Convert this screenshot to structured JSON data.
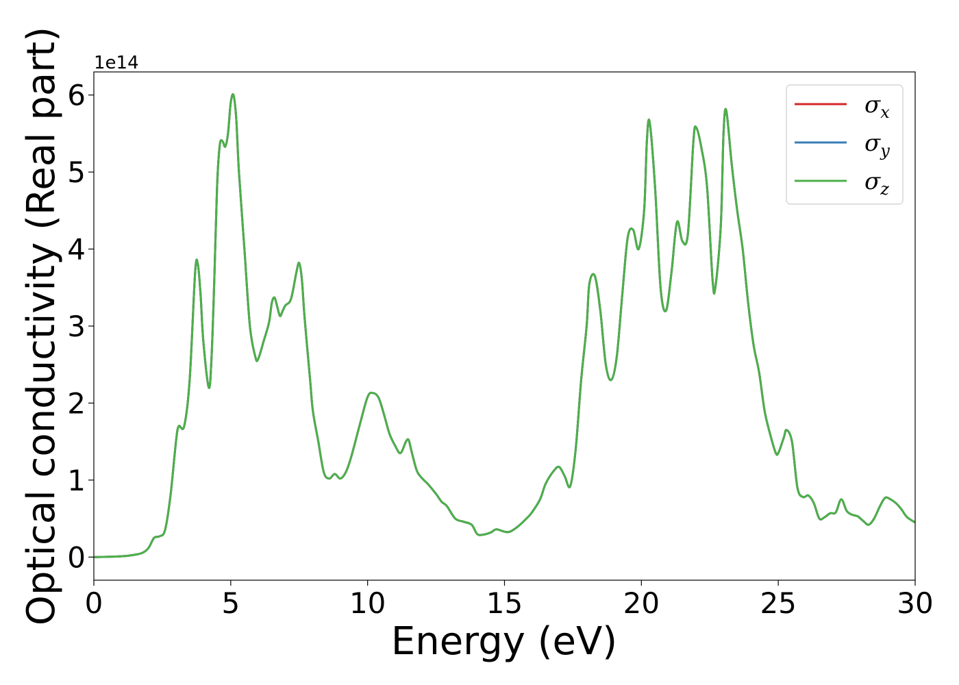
{
  "chart_data": {
    "type": "line",
    "xlabel": "Energy (eV)",
    "ylabel": "Optical conductivity (Real part)",
    "y_offset_label": "1e14",
    "xlim": [
      0,
      30
    ],
    "ylim": [
      -0.3,
      6.3
    ],
    "x_ticks": [
      0,
      5,
      10,
      15,
      20,
      25,
      30
    ],
    "x_tick_labels": [
      "0",
      "5",
      "10",
      "15",
      "20",
      "25",
      "30"
    ],
    "y_ticks": [
      0,
      1,
      2,
      3,
      4,
      5,
      6
    ],
    "y_tick_labels": [
      "0",
      "1",
      "2",
      "3",
      "4",
      "5",
      "6"
    ],
    "grid": false,
    "legend_position": "top-right",
    "series": [
      {
        "name": "σx",
        "symbol": "σ",
        "subscript": "x",
        "color": "#d62728"
      },
      {
        "name": "σy",
        "symbol": "σ",
        "subscript": "y",
        "color": "#377eb8"
      },
      {
        "name": "σz",
        "symbol": "σ",
        "subscript": "z",
        "color": "#4daf4a"
      }
    ],
    "x": [
      0,
      1.0,
      1.5,
      1.8,
      2.0,
      2.2,
      2.4,
      2.6,
      2.8,
      3.0,
      3.1,
      3.3,
      3.5,
      3.7,
      3.8,
      3.9,
      4.0,
      4.2,
      4.3,
      4.4,
      4.5,
      4.6,
      4.7,
      4.8,
      4.9,
      5.0,
      5.1,
      5.2,
      5.3,
      5.5,
      5.7,
      5.9,
      6.0,
      6.2,
      6.4,
      6.5,
      6.6,
      6.7,
      6.8,
      6.9,
      7.0,
      7.2,
      7.4,
      7.5,
      7.6,
      7.7,
      7.9,
      8.0,
      8.2,
      8.4,
      8.6,
      8.8,
      9.0,
      9.2,
      9.4,
      9.7,
      10.0,
      10.2,
      10.4,
      10.6,
      10.8,
      11.0,
      11.2,
      11.4,
      11.5,
      11.6,
      11.8,
      12.0,
      12.2,
      12.5,
      12.7,
      12.9,
      13.2,
      13.5,
      13.8,
      14.0,
      14.2,
      14.5,
      14.7,
      15.0,
      15.2,
      15.5,
      15.8,
      16.0,
      16.3,
      16.5,
      16.8,
      17.0,
      17.2,
      17.4,
      17.6,
      17.8,
      18.0,
      18.1,
      18.3,
      18.5,
      18.7,
      18.9,
      19.1,
      19.3,
      19.5,
      19.7,
      19.9,
      20.1,
      20.2,
      20.3,
      20.5,
      20.7,
      20.9,
      21.1,
      21.3,
      21.5,
      21.7,
      21.9,
      22.0,
      22.2,
      22.4,
      22.6,
      22.7,
      22.9,
      23.0,
      23.1,
      23.3,
      23.5,
      23.7,
      23.9,
      24.1,
      24.3,
      24.5,
      24.7,
      24.9,
      25.0,
      25.2,
      25.3,
      25.5,
      25.7,
      25.9,
      26.1,
      26.3,
      26.5,
      26.7,
      26.9,
      27.1,
      27.3,
      27.5,
      27.7,
      27.9,
      28.1,
      28.3,
      28.5,
      28.7,
      28.9,
      29.1,
      29.3,
      29.5,
      29.7,
      30.0
    ],
    "y": [
      0,
      0.01,
      0.03,
      0.06,
      0.12,
      0.25,
      0.27,
      0.35,
      0.8,
      1.5,
      1.7,
      1.7,
      2.3,
      3.7,
      3.8,
      3.4,
      2.8,
      2.2,
      2.6,
      3.6,
      4.8,
      5.35,
      5.4,
      5.33,
      5.5,
      5.9,
      6.0,
      5.7,
      5.0,
      4.0,
      3.0,
      2.6,
      2.57,
      2.8,
      3.05,
      3.3,
      3.37,
      3.25,
      3.13,
      3.2,
      3.27,
      3.35,
      3.7,
      3.82,
      3.6,
      3.1,
      2.3,
      1.9,
      1.5,
      1.1,
      1.02,
      1.08,
      1.02,
      1.1,
      1.3,
      1.7,
      2.08,
      2.13,
      2.07,
      1.85,
      1.6,
      1.45,
      1.35,
      1.5,
      1.52,
      1.38,
      1.12,
      1.02,
      0.95,
      0.82,
      0.72,
      0.66,
      0.5,
      0.46,
      0.42,
      0.3,
      0.29,
      0.32,
      0.36,
      0.33,
      0.33,
      0.4,
      0.5,
      0.58,
      0.75,
      0.95,
      1.12,
      1.17,
      1.05,
      0.92,
      1.4,
      2.3,
      3.0,
      3.55,
      3.65,
      3.2,
      2.5,
      2.3,
      2.6,
      3.4,
      4.15,
      4.25,
      4.0,
      4.5,
      5.4,
      5.65,
      4.8,
      3.5,
      3.2,
      3.7,
      4.35,
      4.1,
      4.2,
      5.4,
      5.58,
      5.3,
      4.8,
      3.6,
      3.5,
      4.3,
      5.5,
      5.8,
      5.1,
      4.5,
      4.0,
      3.3,
      2.75,
      2.4,
      1.9,
      1.6,
      1.36,
      1.35,
      1.55,
      1.65,
      1.5,
      0.9,
      0.78,
      0.8,
      0.7,
      0.5,
      0.52,
      0.57,
      0.58,
      0.75,
      0.6,
      0.55,
      0.53,
      0.47,
      0.42,
      0.5,
      0.65,
      0.77,
      0.75,
      0.7,
      0.62,
      0.52,
      0.45
    ]
  }
}
